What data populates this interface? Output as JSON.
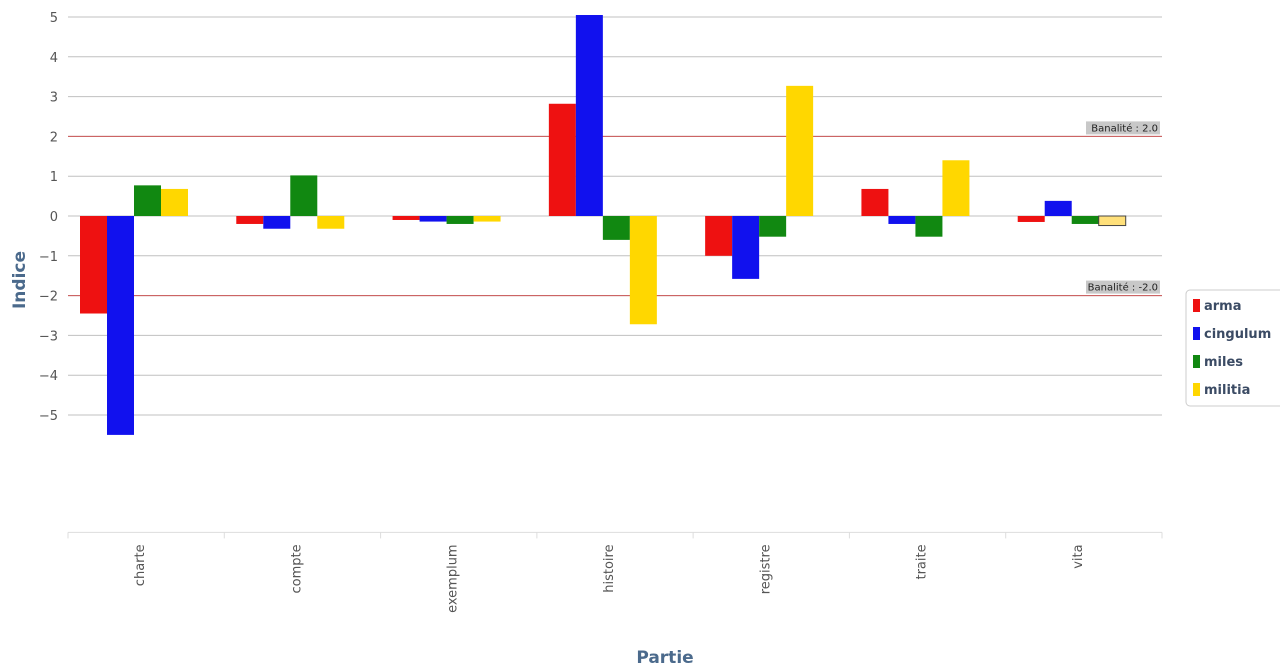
{
  "chart_data": {
    "type": "bar",
    "title": "",
    "xlabel": "Partie",
    "ylabel": "Indice",
    "categories": [
      "charte",
      "compte",
      "exemplum",
      "histoire",
      "registre",
      "traite",
      "vita"
    ],
    "series": [
      {
        "name": "arma",
        "color": "#ee1111",
        "values": [
          -2.45,
          -0.2,
          -0.1,
          2.82,
          -1.0,
          0.68,
          -0.15
        ]
      },
      {
        "name": "cingulum",
        "color": "#1111ee",
        "values": [
          -5.5,
          -0.32,
          -0.14,
          5.05,
          -1.58,
          -0.2,
          0.38
        ]
      },
      {
        "name": "miles",
        "color": "#118811",
        "values": [
          0.77,
          1.02,
          -0.2,
          -0.6,
          -0.52,
          -0.52,
          -0.2
        ]
      },
      {
        "name": "militia",
        "color": "#ffd700",
        "values": [
          0.68,
          -0.32,
          -0.14,
          -2.72,
          3.27,
          1.4,
          -0.24
        ]
      }
    ],
    "ylim": [
      -8,
      5.3
    ],
    "yticks": [
      5,
      4,
      3,
      2,
      1,
      0,
      -1,
      -2,
      -3,
      -4,
      -5
    ],
    "grid": true,
    "thresholds": [
      {
        "value": 2.0,
        "label": "Banalité : 2.0"
      },
      {
        "value": -2.0,
        "label": "Banalité : -2.0"
      }
    ],
    "legend": "right"
  }
}
